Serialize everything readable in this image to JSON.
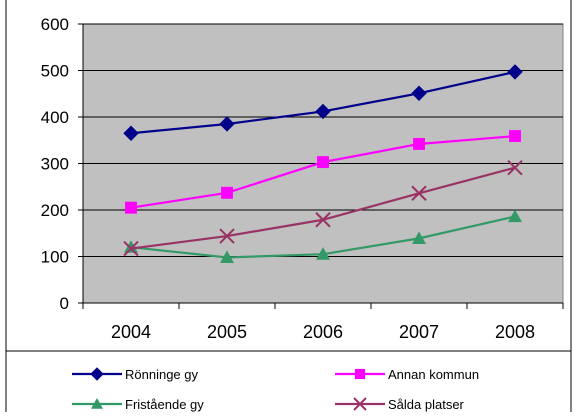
{
  "chart_data": {
    "type": "line",
    "title": "",
    "xlabel": "",
    "ylabel": "",
    "categories": [
      "2004",
      "2005",
      "2006",
      "2007",
      "2008"
    ],
    "ylim": [
      0,
      600
    ],
    "yticks": [
      0,
      100,
      200,
      300,
      400,
      500,
      600
    ],
    "grid": "horizontal",
    "plot_background": "#c0c0c0",
    "legend_position": "bottom",
    "series": [
      {
        "name": "Rönninge gy",
        "values": [
          365,
          385,
          412,
          451,
          497
        ],
        "color": "#00008b",
        "marker": "diamond"
      },
      {
        "name": "Annan kommun",
        "values": [
          205,
          237,
          303,
          342,
          359
        ],
        "color": "#ff00ff",
        "marker": "square"
      },
      {
        "name": "Fristående gy",
        "values": [
          120,
          98,
          105,
          139,
          186
        ],
        "color": "#339966",
        "marker": "triangle"
      },
      {
        "name": "Sålda platser",
        "values": [
          117,
          144,
          179,
          236,
          291
        ],
        "color": "#993366",
        "marker": "x"
      }
    ]
  }
}
